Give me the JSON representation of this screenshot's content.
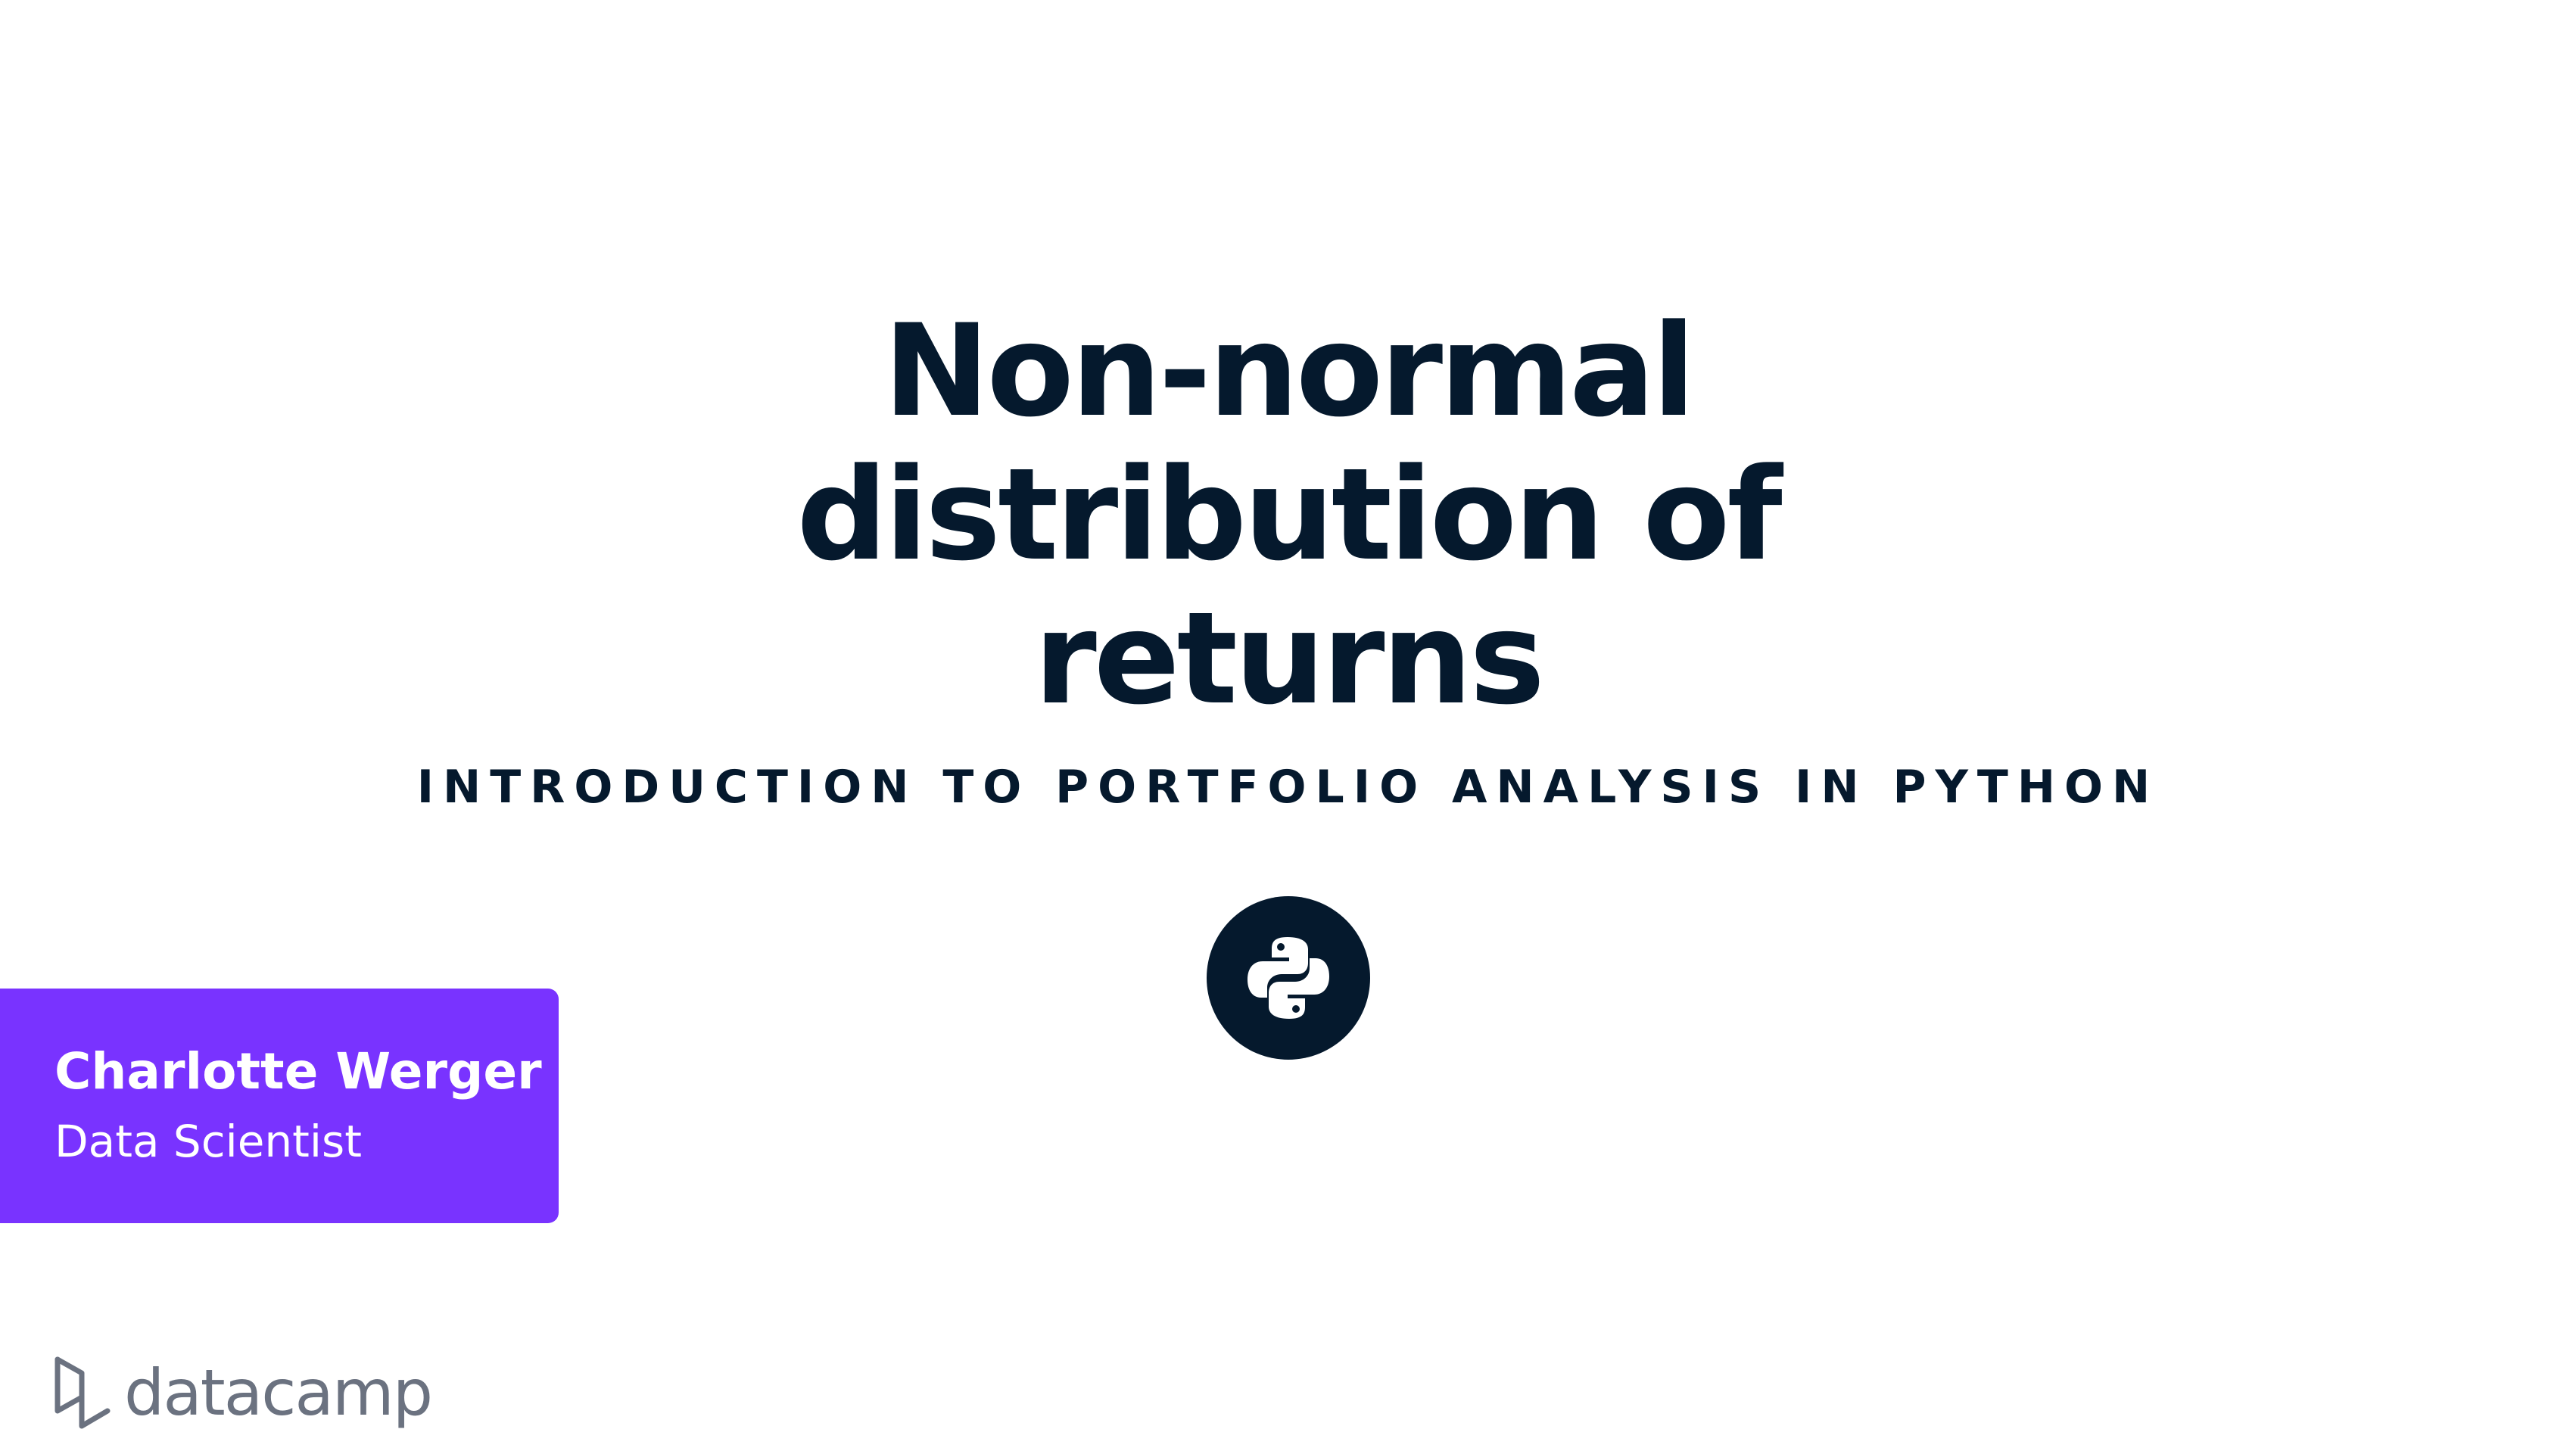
{
  "slide": {
    "title_lines": [
      "Non-normal",
      "distribution of",
      "returns"
    ],
    "course": "INTRODUCTION TO PORTFOLIO ANALYSIS IN PYTHON",
    "language_icon": "python-icon"
  },
  "author": {
    "name": "Charlotte Werger",
    "role": "Data Scientist"
  },
  "brand": {
    "name": "datacamp",
    "icon": "datacamp-logo-icon"
  },
  "colors": {
    "text": "#05192d",
    "accent": "#7933ff",
    "brand_gray": "#6b7280",
    "background": "#ffffff"
  }
}
